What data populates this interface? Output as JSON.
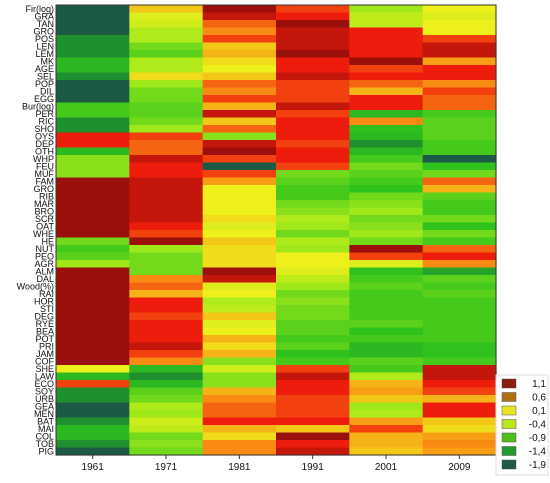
{
  "chart_data": {
    "type": "heatmap",
    "columns": [
      "1961",
      "1971",
      "1981",
      "1991",
      "2001",
      "2009"
    ],
    "rows": [
      "Fir(log)",
      "GRA",
      "TAN",
      "GRO",
      "POS",
      "LEN",
      "LEM",
      "MK",
      "AGE",
      "SEL",
      "POP",
      "DIL",
      "EGG",
      "Bur(log)",
      "PER",
      "RIC",
      "SHO",
      "OYS",
      "DEP",
      "OTH",
      "WHP",
      "FEU",
      "MUF",
      "FAM",
      "GRO",
      "RIB",
      "MAR",
      "BRO",
      "SCR",
      "OAT",
      "WHE",
      "HE",
      "NUT",
      "PEO",
      "AGR",
      "ALM",
      "DAL",
      "Wood(%)",
      "RAI",
      "HOR",
      "STI",
      "DEG",
      "RYE",
      "BEA",
      "POT",
      "PRI",
      "JAM",
      "COF",
      "SHE",
      "LAW",
      "ECO",
      "SOY",
      "URB",
      "GEA",
      "MEN",
      "BAT",
      "MAI",
      "COL",
      "TOB",
      "PIG"
    ],
    "values": [
      [
        -1.9,
        0.3,
        1.1,
        0.8,
        -0.4,
        0.1
      ],
      [
        -1.9,
        0.0,
        1.0,
        0.9,
        -0.2,
        0.0
      ],
      [
        -1.9,
        -0.1,
        0.7,
        1.1,
        -0.2,
        0.1
      ],
      [
        -1.9,
        -0.3,
        0.6,
        1.0,
        0.9,
        0.1
      ],
      [
        -1.4,
        -0.3,
        0.8,
        1.0,
        0.9,
        0.8
      ],
      [
        -1.4,
        -0.6,
        0.3,
        1.0,
        0.9,
        1.0
      ],
      [
        -1.4,
        -0.7,
        0.4,
        1.1,
        0.9,
        1.0
      ],
      [
        -1.0,
        -0.3,
        0.2,
        0.9,
        1.1,
        0.5
      ],
      [
        -1.0,
        -0.3,
        0.1,
        0.9,
        0.8,
        0.9
      ],
      [
        -1.4,
        0.2,
        0.3,
        1.0,
        0.9,
        0.9
      ],
      [
        -1.9,
        -0.4,
        0.7,
        0.8,
        0.7,
        0.6
      ],
      [
        -1.9,
        -0.6,
        0.6,
        0.8,
        0.4,
        0.8
      ],
      [
        -1.9,
        -0.6,
        0.8,
        0.8,
        0.9,
        0.7
      ],
      [
        -0.8,
        -0.7,
        0.4,
        1.0,
        0.9,
        0.7
      ],
      [
        -0.8,
        -0.7,
        1.0,
        0.8,
        -1.0,
        -0.8
      ],
      [
        -1.4,
        -0.6,
        0.3,
        0.9,
        0.6,
        -0.7
      ],
      [
        -1.4,
        -0.4,
        0.7,
        0.9,
        -0.9,
        -0.7
      ],
      [
        0.9,
        0.8,
        -0.5,
        0.9,
        -1.0,
        -0.7
      ],
      [
        0.9,
        0.7,
        1.0,
        0.8,
        -1.4,
        -0.8
      ],
      [
        -1.0,
        0.7,
        1.1,
        0.9,
        -1.0,
        -0.8
      ],
      [
        -0.5,
        1.0,
        0.8,
        0.9,
        -0.8,
        -1.9
      ],
      [
        -0.5,
        0.9,
        -1.9,
        0.8,
        -0.6,
        -0.9
      ],
      [
        -0.5,
        0.9,
        0.8,
        -0.6,
        -0.7,
        -0.6
      ],
      [
        1.1,
        1.0,
        0.5,
        -0.7,
        -0.8,
        0.7
      ],
      [
        1.1,
        1.0,
        0.1,
        -0.8,
        -0.9,
        0.4
      ],
      [
        1.1,
        1.0,
        0.1,
        -0.8,
        -0.6,
        -0.7
      ],
      [
        1.1,
        1.0,
        0.1,
        -0.6,
        -0.5,
        -0.8
      ],
      [
        1.1,
        1.0,
        0.1,
        -0.5,
        -0.4,
        -0.8
      ],
      [
        1.1,
        1.0,
        0.2,
        -0.3,
        -0.6,
        -0.6
      ],
      [
        1.1,
        0.9,
        0.0,
        -0.4,
        -0.5,
        -0.9
      ],
      [
        1.1,
        0.8,
        0.1,
        -0.6,
        -0.4,
        -0.6
      ],
      [
        -0.6,
        1.1,
        0.3,
        -0.3,
        -0.6,
        -0.8
      ],
      [
        -0.8,
        -0.4,
        0.2,
        -0.4,
        1.1,
        0.7
      ],
      [
        -0.7,
        -0.6,
        0.2,
        0.1,
        0.8,
        0.9
      ],
      [
        -0.4,
        -0.6,
        0.2,
        0.1,
        0.0,
        0.6
      ],
      [
        1.1,
        -0.6,
        1.1,
        0.0,
        -0.9,
        -1.2
      ],
      [
        1.1,
        0.6,
        1.0,
        -0.2,
        -0.8,
        -0.7
      ],
      [
        1.1,
        0.7,
        0.0,
        -0.4,
        -0.7,
        -0.8
      ],
      [
        1.1,
        0.4,
        0.1,
        -0.6,
        -0.8,
        -0.7
      ],
      [
        1.1,
        0.9,
        -0.3,
        -0.5,
        -0.8,
        -0.8
      ],
      [
        1.1,
        0.9,
        -0.2,
        -0.6,
        -0.8,
        -0.8
      ],
      [
        1.1,
        0.8,
        0.3,
        -0.6,
        -0.8,
        -0.8
      ],
      [
        1.1,
        0.9,
        0.0,
        -0.7,
        -0.7,
        -0.8
      ],
      [
        1.1,
        0.9,
        0.1,
        -0.7,
        -0.9,
        -0.8
      ],
      [
        1.1,
        0.9,
        0.4,
        -0.8,
        -0.8,
        -0.8
      ],
      [
        1.1,
        1.0,
        0.2,
        -0.7,
        -1.0,
        -0.9
      ],
      [
        1.1,
        0.8,
        0.4,
        -0.9,
        -1.0,
        -0.9
      ],
      [
        1.1,
        0.6,
        -0.5,
        -0.8,
        -0.7,
        -0.8
      ],
      [
        0.1,
        -1.0,
        -0.1,
        0.8,
        -0.8,
        1.0
      ],
      [
        -1.0,
        -1.4,
        -0.5,
        1.0,
        -0.3,
        1.0
      ],
      [
        0.8,
        -1.0,
        -0.5,
        0.9,
        0.4,
        0.9
      ],
      [
        -1.4,
        -0.7,
        0.4,
        0.9,
        0.5,
        0.8
      ],
      [
        -1.4,
        -0.6,
        0.6,
        0.8,
        0.3,
        0.4
      ],
      [
        -1.9,
        -0.3,
        0.7,
        0.8,
        -0.4,
        0.9
      ],
      [
        -1.9,
        -0.4,
        0.7,
        0.8,
        -0.3,
        0.9
      ],
      [
        -1.4,
        -0.1,
        0.9,
        0.9,
        0.5,
        0.3
      ],
      [
        -1.0,
        -0.2,
        0.4,
        0.3,
        0.8,
        0.2
      ],
      [
        -1.0,
        -0.6,
        0.2,
        1.1,
        0.4,
        0.5
      ],
      [
        -1.4,
        -0.5,
        0.6,
        0.9,
        0.4,
        0.6
      ],
      [
        -1.9,
        -0.6,
        0.6,
        1.0,
        0.3,
        0.5
      ]
    ],
    "legend": {
      "labels": [
        "1,1",
        "0,6",
        "0,1",
        "-0,4",
        "-0,9",
        "-1,4",
        "-1,9"
      ],
      "levels": [
        1.1,
        0.6,
        0.1,
        -0.4,
        -0.9,
        -1.4,
        -1.9
      ],
      "colors": [
        "#8b1a0c",
        "#b06f12",
        "#e6e61f",
        "#b8e61c",
        "#4fbf1a",
        "#219b2e",
        "#1d5a45"
      ],
      "placement": "bottom-right"
    },
    "color_stops": [
      {
        "v": -1.9,
        "c": "#1d5a45"
      },
      {
        "v": -1.4,
        "c": "#1f8f2f"
      },
      {
        "v": -0.9,
        "c": "#2fc21d"
      },
      {
        "v": -0.4,
        "c": "#9fe81a"
      },
      {
        "v": 0.1,
        "c": "#eef01c"
      },
      {
        "v": 0.6,
        "c": "#f98a13"
      },
      {
        "v": 0.9,
        "c": "#ee1c0d"
      },
      {
        "v": 1.1,
        "c": "#9b100a"
      }
    ]
  }
}
